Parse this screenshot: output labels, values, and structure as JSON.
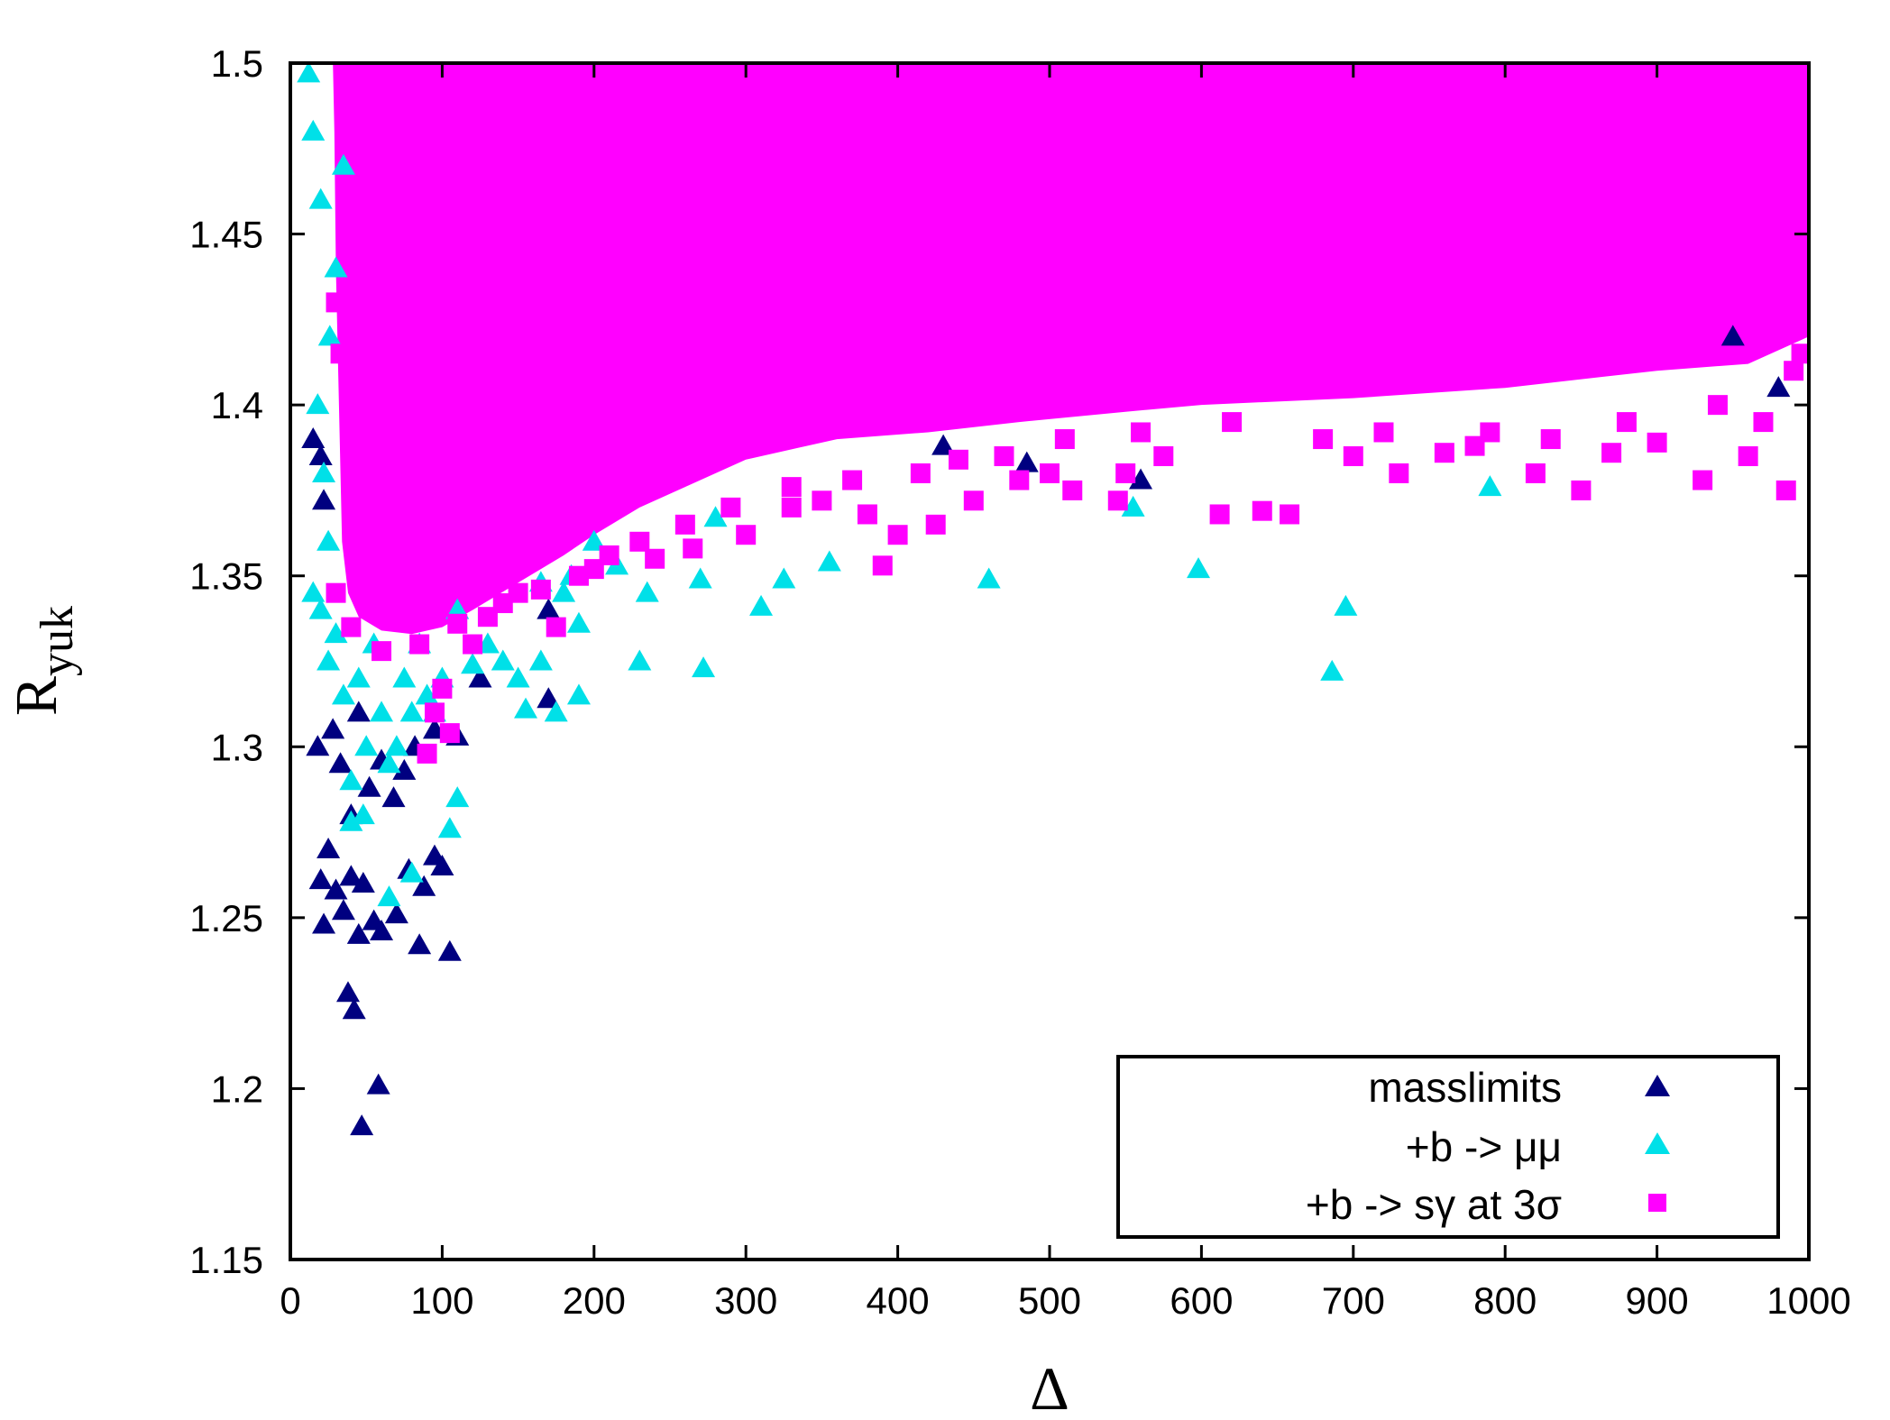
{
  "chart_data": {
    "type": "scatter",
    "xlabel": "Δ",
    "ylabel": "R",
    "ylabel_subscript": "yuk",
    "xlim": [
      0,
      1000
    ],
    "ylim": [
      1.15,
      1.5
    ],
    "x_ticks": [
      "0",
      "100",
      "200",
      "300",
      "400",
      "500",
      "600",
      "700",
      "800",
      "900",
      "1000"
    ],
    "y_ticks": [
      "1.15",
      "1.2",
      "1.25",
      "1.3",
      "1.35",
      "1.4",
      "1.45",
      "1.5"
    ],
    "legend_position": "bottom-right",
    "grid": false,
    "series": [
      {
        "name": "masslimits",
        "marker": "triangle",
        "color": "#000080",
        "points": [
          [
            47,
            1.189
          ],
          [
            58,
            1.201
          ],
          [
            38,
            1.228
          ],
          [
            42,
            1.223
          ],
          [
            45,
            1.245
          ],
          [
            55,
            1.249
          ],
          [
            60,
            1.246
          ],
          [
            70,
            1.251
          ],
          [
            85,
            1.242
          ],
          [
            105,
            1.24
          ],
          [
            20,
            1.261
          ],
          [
            30,
            1.258
          ],
          [
            22,
            1.248
          ],
          [
            35,
            1.252
          ],
          [
            48,
            1.26
          ],
          [
            40,
            1.262
          ],
          [
            100,
            1.265
          ],
          [
            88,
            1.259
          ],
          [
            78,
            1.264
          ],
          [
            95,
            1.268
          ],
          [
            25,
            1.27
          ],
          [
            40,
            1.28
          ],
          [
            52,
            1.288
          ],
          [
            33,
            1.295
          ],
          [
            68,
            1.285
          ],
          [
            75,
            1.293
          ],
          [
            60,
            1.296
          ],
          [
            82,
            1.3
          ],
          [
            18,
            1.3
          ],
          [
            28,
            1.305
          ],
          [
            45,
            1.31
          ],
          [
            95,
            1.305
          ],
          [
            110,
            1.303
          ],
          [
            15,
            1.39
          ],
          [
            20,
            1.385
          ],
          [
            22,
            1.372
          ],
          [
            170,
            1.314
          ],
          [
            170,
            1.34
          ],
          [
            430,
            1.388
          ],
          [
            485,
            1.383
          ],
          [
            560,
            1.378
          ],
          [
            950,
            1.42
          ],
          [
            980,
            1.405
          ],
          [
            125,
            1.32
          ]
        ]
      },
      {
        "name": "+b -> μμ",
        "marker": "triangle",
        "color": "#00e0e8",
        "points": [
          [
            790,
            1.376
          ],
          [
            598,
            1.352
          ],
          [
            695,
            1.341
          ],
          [
            686,
            1.322
          ],
          [
            460,
            1.349
          ],
          [
            355,
            1.354
          ],
          [
            325,
            1.349
          ],
          [
            310,
            1.341
          ],
          [
            272,
            1.323
          ],
          [
            230,
            1.325
          ],
          [
            270,
            1.349
          ],
          [
            235,
            1.345
          ],
          [
            190,
            1.315
          ],
          [
            175,
            1.31
          ],
          [
            165,
            1.325
          ],
          [
            155,
            1.311
          ],
          [
            150,
            1.32
          ],
          [
            140,
            1.325
          ],
          [
            110,
            1.285
          ],
          [
            105,
            1.276
          ],
          [
            80,
            1.263
          ],
          [
            65,
            1.256
          ],
          [
            48,
            1.28
          ],
          [
            40,
            1.278
          ],
          [
            180,
            1.345
          ],
          [
            190,
            1.336
          ],
          [
            165,
            1.348
          ],
          [
            185,
            1.35
          ],
          [
            200,
            1.36
          ],
          [
            215,
            1.353
          ],
          [
            130,
            1.33
          ],
          [
            120,
            1.324
          ],
          [
            100,
            1.32
          ],
          [
            90,
            1.315
          ],
          [
            75,
            1.32
          ],
          [
            60,
            1.31
          ],
          [
            50,
            1.3
          ],
          [
            35,
            1.315
          ],
          [
            25,
            1.325
          ],
          [
            30,
            1.333
          ],
          [
            20,
            1.34
          ],
          [
            15,
            1.345
          ],
          [
            25,
            1.36
          ],
          [
            22,
            1.38
          ],
          [
            18,
            1.4
          ],
          [
            26,
            1.42
          ],
          [
            30,
            1.44
          ],
          [
            20,
            1.46
          ],
          [
            15,
            1.48
          ],
          [
            12,
            1.497
          ],
          [
            35,
            1.47
          ],
          [
            70,
            1.3
          ],
          [
            85,
            1.33
          ],
          [
            55,
            1.33
          ],
          [
            45,
            1.32
          ],
          [
            40,
            1.29
          ],
          [
            65,
            1.295
          ],
          [
            95,
            1.31
          ],
          [
            80,
            1.31
          ],
          [
            110,
            1.34
          ],
          [
            555,
            1.37
          ],
          [
            280,
            1.367
          ]
        ]
      },
      {
        "name": "+b -> sγ at 3σ",
        "marker": "square",
        "color": "#ff00ff",
        "points": [
          [
            90,
            1.298
          ],
          [
            95,
            1.31
          ],
          [
            100,
            1.317
          ],
          [
            105,
            1.304
          ],
          [
            120,
            1.33
          ],
          [
            130,
            1.338
          ],
          [
            150,
            1.345
          ],
          [
            175,
            1.335
          ],
          [
            200,
            1.352
          ],
          [
            240,
            1.355
          ],
          [
            265,
            1.358
          ],
          [
            300,
            1.362
          ],
          [
            330,
            1.37
          ],
          [
            350,
            1.372
          ],
          [
            380,
            1.368
          ],
          [
            390,
            1.353
          ],
          [
            400,
            1.362
          ],
          [
            425,
            1.365
          ],
          [
            450,
            1.372
          ],
          [
            480,
            1.378
          ],
          [
            500,
            1.38
          ],
          [
            515,
            1.375
          ],
          [
            545,
            1.372
          ],
          [
            550,
            1.38
          ],
          [
            575,
            1.385
          ],
          [
            612,
            1.368
          ],
          [
            640,
            1.369
          ],
          [
            658,
            1.368
          ],
          [
            700,
            1.385
          ],
          [
            730,
            1.38
          ],
          [
            760,
            1.386
          ],
          [
            790,
            1.392
          ],
          [
            820,
            1.38
          ],
          [
            850,
            1.375
          ],
          [
            870,
            1.386
          ],
          [
            900,
            1.389
          ],
          [
            930,
            1.378
          ],
          [
            960,
            1.385
          ],
          [
            985,
            1.375
          ],
          [
            970,
            1.395
          ],
          [
            995,
            1.415
          ],
          [
            990,
            1.41
          ],
          [
            940,
            1.4
          ],
          [
            880,
            1.395
          ],
          [
            830,
            1.39
          ],
          [
            780,
            1.388
          ],
          [
            720,
            1.392
          ],
          [
            680,
            1.39
          ],
          [
            620,
            1.395
          ],
          [
            560,
            1.392
          ],
          [
            510,
            1.39
          ],
          [
            470,
            1.385
          ],
          [
            440,
            1.384
          ],
          [
            415,
            1.38
          ],
          [
            370,
            1.378
          ],
          [
            330,
            1.376
          ],
          [
            290,
            1.37
          ],
          [
            260,
            1.365
          ],
          [
            230,
            1.36
          ],
          [
            210,
            1.356
          ],
          [
            190,
            1.35
          ],
          [
            165,
            1.346
          ],
          [
            140,
            1.342
          ],
          [
            110,
            1.336
          ],
          [
            85,
            1.33
          ],
          [
            60,
            1.328
          ],
          [
            40,
            1.335
          ],
          [
            30,
            1.345
          ],
          [
            33,
            1.415
          ],
          [
            30,
            1.43
          ]
        ]
      }
    ],
    "dense_regions": [
      {
        "series": "+b -> sγ at 3σ",
        "polygon": [
          [
            28,
            1.5
          ],
          [
            1000,
            1.5
          ],
          [
            1000,
            1.42
          ],
          [
            960,
            1.412
          ],
          [
            900,
            1.41
          ],
          [
            800,
            1.405
          ],
          [
            700,
            1.402
          ],
          [
            600,
            1.4
          ],
          [
            550,
            1.398
          ],
          [
            480,
            1.395
          ],
          [
            420,
            1.392
          ],
          [
            360,
            1.39
          ],
          [
            300,
            1.384
          ],
          [
            260,
            1.376
          ],
          [
            230,
            1.37
          ],
          [
            200,
            1.362
          ],
          [
            180,
            1.356
          ],
          [
            150,
            1.348
          ],
          [
            120,
            1.34
          ],
          [
            100,
            1.335
          ],
          [
            80,
            1.333
          ],
          [
            60,
            1.334
          ],
          [
            45,
            1.338
          ],
          [
            38,
            1.345
          ],
          [
            34,
            1.36
          ],
          [
            32,
            1.4
          ],
          [
            30,
            1.44
          ],
          [
            29,
            1.48
          ]
        ]
      }
    ]
  }
}
